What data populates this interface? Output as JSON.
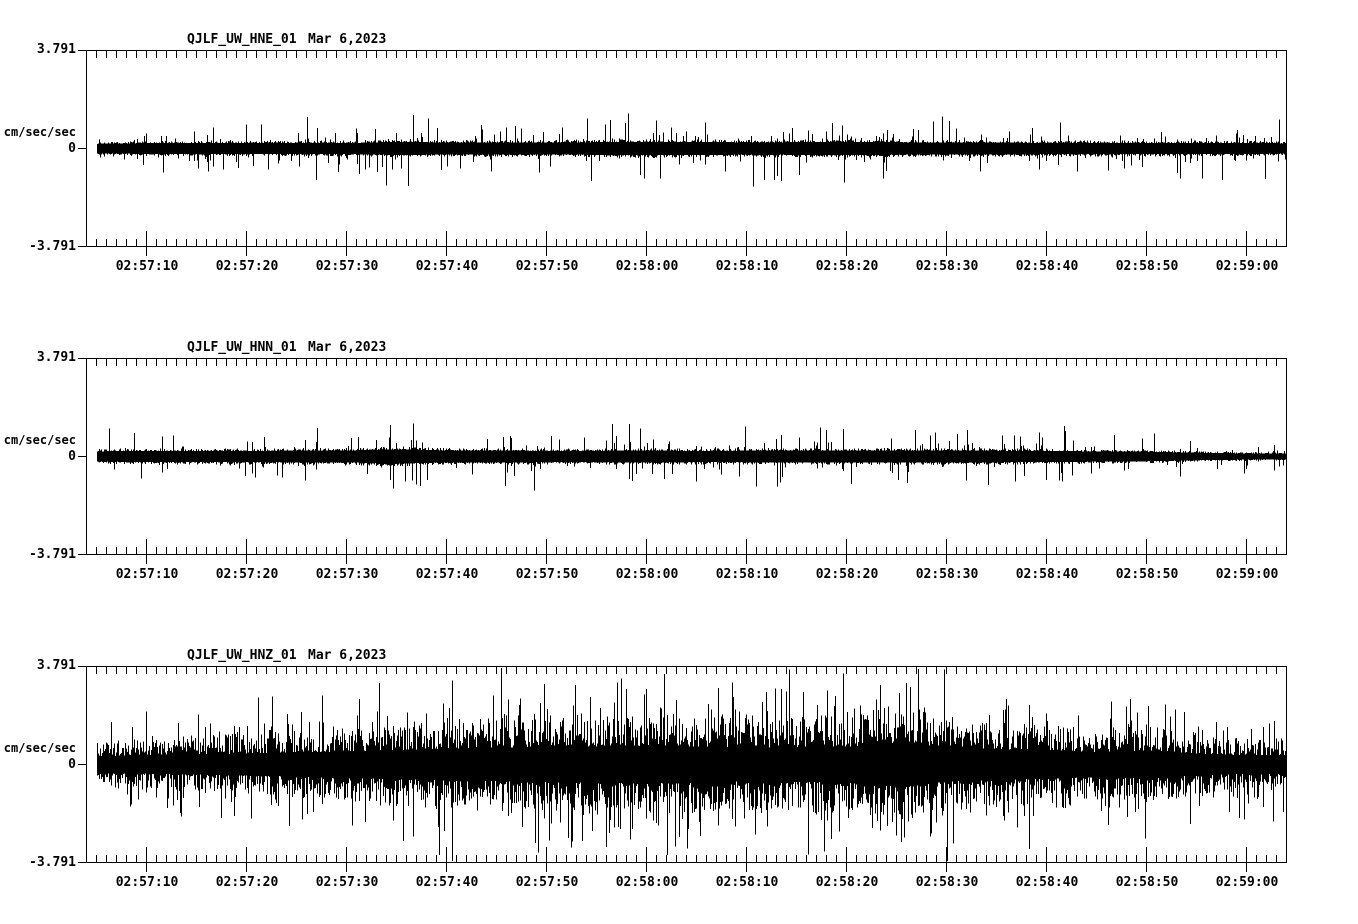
{
  "figure": {
    "background": "#ffffff",
    "foreground": "#000000",
    "description": "Three stacked seismogram traces (webicorder-style acceleration waveforms)"
  },
  "x_axis": {
    "labels": [
      "02:57:10",
      "02:57:20",
      "02:57:30",
      "02:57:40",
      "02:57:50",
      "02:58:00",
      "02:58:10",
      "02:58:20",
      "02:58:30",
      "02:58:40",
      "02:58:50",
      "02:59:00"
    ],
    "major_interval_sec": 10,
    "minor_interval_sec": 1,
    "span_sec": 120
  },
  "chart_data": [
    {
      "type": "line",
      "title": "QJLF_UW_HNE_01",
      "date": "Mar 6,2023",
      "ylabel": "cm/sec/sec",
      "ylim": [
        -3.791,
        3.791
      ],
      "yticks": [
        3.791,
        0,
        -3.791
      ],
      "ytick_labels": [
        "3.791",
        "0",
        "-3.791"
      ],
      "legend": "off",
      "grid": "off",
      "waveform": {
        "seed": 101,
        "envelope_t_sec": [
          0,
          6,
          16,
          26,
          31,
          36,
          46,
          56,
          66,
          76,
          86,
          96,
          106,
          116,
          120
        ],
        "envelope_amp": [
          0.26,
          0.3,
          0.3,
          0.31,
          0.36,
          0.32,
          0.33,
          0.36,
          0.34,
          0.35,
          0.33,
          0.31,
          0.31,
          0.3,
          0.28
        ],
        "core_floor": 0.7,
        "core_pow": 2.4,
        "spike_probability": 0.11,
        "spike_gain": 3.0,
        "clip_amp": 3.72
      }
    },
    {
      "type": "line",
      "title": "QJLF_UW_HNN_01",
      "date": "Mar 6,2023",
      "ylabel": "cm/sec/sec",
      "ylim": [
        -3.791,
        3.791
      ],
      "yticks": [
        3.791,
        0,
        -3.791
      ],
      "ytick_labels": [
        "3.791",
        "0",
        "-3.791"
      ],
      "legend": "off",
      "grid": "off",
      "waveform": {
        "seed": 202,
        "envelope_t_sec": [
          0,
          6,
          16,
          26,
          30,
          34,
          46,
          56,
          62,
          66,
          76,
          86,
          96,
          106,
          112,
          116,
          120
        ],
        "envelope_amp": [
          0.28,
          0.3,
          0.31,
          0.33,
          0.4,
          0.34,
          0.31,
          0.32,
          0.3,
          0.32,
          0.32,
          0.33,
          0.3,
          0.26,
          0.2,
          0.17,
          0.15
        ],
        "core_floor": 0.7,
        "core_pow": 2.4,
        "spike_probability": 0.11,
        "spike_gain": 3.0,
        "clip_amp": 3.72
      }
    },
    {
      "type": "line",
      "title": "QJLF_UW_HNZ_01",
      "date": "Mar 6,2023",
      "ylabel": "cm/sec/sec",
      "ylim": [
        -3.791,
        3.791
      ],
      "yticks": [
        3.791,
        0,
        -3.791
      ],
      "ytick_labels": [
        "3.791",
        "0",
        "-3.791"
      ],
      "legend": "off",
      "grid": "off",
      "waveform": {
        "seed": 303,
        "envelope_t_sec": [
          0,
          6,
          16,
          26,
          36,
          46,
          56,
          66,
          76,
          80,
          82,
          86,
          96,
          101,
          106,
          111,
          116,
          120
        ],
        "envelope_amp": [
          0.9,
          1.0,
          1.2,
          1.4,
          1.7,
          1.9,
          2.0,
          1.8,
          1.9,
          2.3,
          2.3,
          1.8,
          1.5,
          1.3,
          1.5,
          1.15,
          1.0,
          1.0
        ],
        "core_floor": 0.36,
        "core_pow": 1.7,
        "spike_probability": 0.32,
        "spike_gain": 1.9,
        "clip_amp": 3.72
      }
    }
  ]
}
